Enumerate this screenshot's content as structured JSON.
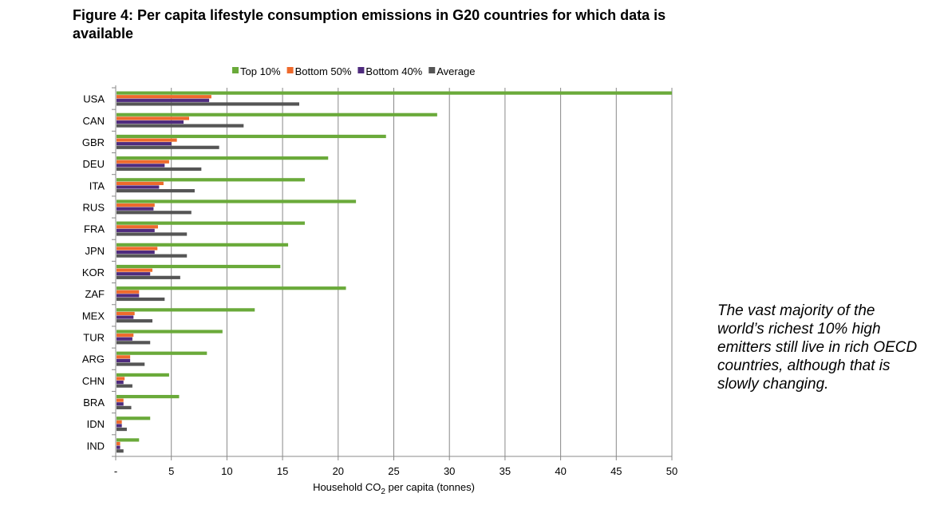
{
  "title": "Figure 4: Per capita lifestyle consumption emissions in G20 countries for which data is available",
  "note": "The vast majority of the world’s richest 10% high emitters still live in rich OECD countries, although that is slowly changing.",
  "colors": {
    "Top 10%": "#6aaa3a",
    "Bottom 50%": "#ee6a2c",
    "Bottom 40%": "#4f2b7e",
    "Average": "#555555"
  },
  "chart_data": {
    "type": "bar",
    "orientation": "horizontal",
    "title": "Figure 4: Per capita lifestyle consumption emissions in G20 countries for which data is available",
    "xlabel": "Household CO2 per capita (tonnes)",
    "xlabel_main": "Household CO",
    "xlabel_sub": "2",
    "xlabel_tail": " per capita (tonnes)",
    "xlim": [
      0,
      50
    ],
    "xticks": [
      "-",
      "5",
      "10",
      "15",
      "20",
      "25",
      "30",
      "35",
      "40",
      "45",
      "50"
    ],
    "grid": "vertical",
    "legend": "top",
    "categories": [
      "USA",
      "CAN",
      "GBR",
      "DEU",
      "ITA",
      "RUS",
      "FRA",
      "JPN",
      "KOR",
      "ZAF",
      "MEX",
      "TUR",
      "ARG",
      "CHN",
      "BRA",
      "IDN",
      "IND"
    ],
    "series": [
      {
        "name": "Top 10%",
        "values": [
          50,
          28.9,
          24.3,
          19.1,
          17.0,
          21.6,
          17.0,
          15.5,
          14.8,
          20.7,
          12.5,
          9.6,
          8.2,
          4.8,
          5.7,
          3.1,
          2.1
        ]
      },
      {
        "name": "Bottom 50%",
        "values": [
          8.6,
          6.6,
          5.5,
          4.8,
          4.3,
          3.5,
          3.8,
          3.75,
          3.3,
          2.1,
          1.7,
          1.6,
          1.3,
          0.8,
          0.7,
          0.55,
          0.4
        ]
      },
      {
        "name": "Bottom 40%",
        "values": [
          8.4,
          6.1,
          5.0,
          4.4,
          3.9,
          3.4,
          3.5,
          3.5,
          3.1,
          2.1,
          1.6,
          1.5,
          1.3,
          0.7,
          0.7,
          0.55,
          0.4
        ]
      },
      {
        "name": "Average",
        "values": [
          16.5,
          11.5,
          9.3,
          7.7,
          7.1,
          6.8,
          6.4,
          6.4,
          5.8,
          4.4,
          3.3,
          3.1,
          2.6,
          1.5,
          1.4,
          1.0,
          0.7
        ]
      }
    ]
  }
}
